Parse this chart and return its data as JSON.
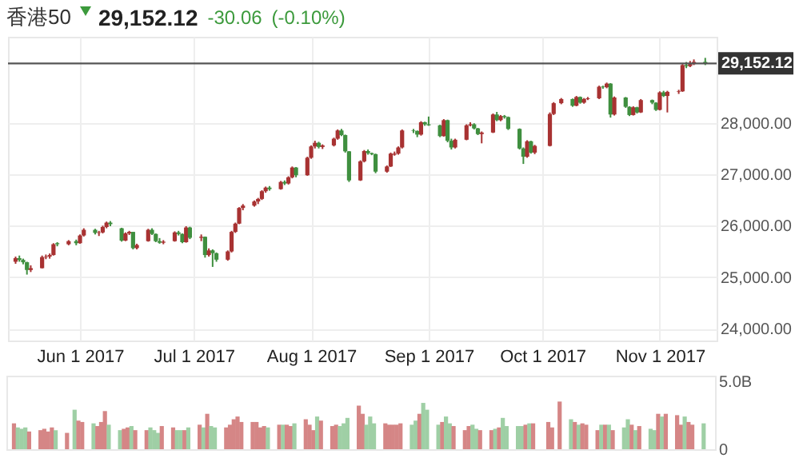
{
  "chart_data": [
    {
      "type": "candlestick",
      "title": "香港50",
      "annotations": [
        "29,152.12",
        "-30.06",
        "(-0.10%)"
      ],
      "x": [
        "2017-05-15",
        "2017-05-16",
        "2017-05-17",
        "2017-05-18",
        "2017-05-19",
        "2017-05-22",
        "2017-05-23",
        "2017-05-24",
        "2017-05-25",
        "2017-05-26",
        "2017-05-29",
        "2017-05-31",
        "2017-06-01",
        "2017-06-02",
        "2017-06-05",
        "2017-06-06",
        "2017-06-07",
        "2017-06-08",
        "2017-06-09",
        "2017-06-12",
        "2017-06-13",
        "2017-06-14",
        "2017-06-15",
        "2017-06-16",
        "2017-06-19",
        "2017-06-20",
        "2017-06-21",
        "2017-06-22",
        "2017-06-23",
        "2017-06-26",
        "2017-06-27",
        "2017-06-28",
        "2017-06-29",
        "2017-06-30",
        "2017-07-03",
        "2017-07-04",
        "2017-07-05",
        "2017-07-06",
        "2017-07-07",
        "2017-07-10",
        "2017-07-11",
        "2017-07-12",
        "2017-07-13",
        "2017-07-14",
        "2017-07-17",
        "2017-07-18",
        "2017-07-19",
        "2017-07-20",
        "2017-07-21",
        "2017-07-24",
        "2017-07-25",
        "2017-07-26",
        "2017-07-27",
        "2017-07-28",
        "2017-07-31",
        "2017-08-01",
        "2017-08-02",
        "2017-08-03",
        "2017-08-04",
        "2017-08-07",
        "2017-08-08",
        "2017-08-09",
        "2017-08-10",
        "2017-08-11",
        "2017-08-14",
        "2017-08-15",
        "2017-08-16",
        "2017-08-17",
        "2017-08-18",
        "2017-08-21",
        "2017-08-22",
        "2017-08-23",
        "2017-08-24",
        "2017-08-25",
        "2017-08-28",
        "2017-08-29",
        "2017-08-30",
        "2017-08-31",
        "2017-09-01",
        "2017-09-04",
        "2017-09-05",
        "2017-09-06",
        "2017-09-07",
        "2017-09-08",
        "2017-09-11",
        "2017-09-12",
        "2017-09-13",
        "2017-09-14",
        "2017-09-15",
        "2017-09-18",
        "2017-09-19",
        "2017-09-20",
        "2017-09-21",
        "2017-09-22",
        "2017-09-25",
        "2017-09-26",
        "2017-09-27",
        "2017-09-28",
        "2017-09-29",
        "2017-10-03",
        "2017-10-04",
        "2017-10-06",
        "2017-10-09",
        "2017-10-10",
        "2017-10-11",
        "2017-10-12",
        "2017-10-13",
        "2017-10-16",
        "2017-10-17",
        "2017-10-18",
        "2017-10-19",
        "2017-10-20",
        "2017-10-23",
        "2017-10-24",
        "2017-10-25",
        "2017-10-26",
        "2017-10-27",
        "2017-10-30",
        "2017-10-31",
        "2017-11-01",
        "2017-11-02",
        "2017-11-03",
        "2017-11-06",
        "2017-11-07",
        "2017-11-08",
        "2017-11-09",
        "2017-11-10",
        "2017-11-13"
      ],
      "ohlc": [
        [
          25300,
          25400,
          25260,
          25370
        ],
        [
          25370,
          25420,
          25300,
          25335
        ],
        [
          25335,
          25360,
          25250,
          25290
        ],
        [
          25290,
          25300,
          25050,
          25140
        ],
        [
          25140,
          25230,
          25100,
          25175
        ],
        [
          25175,
          25420,
          25170,
          25390
        ],
        [
          25390,
          25440,
          25350,
          25400
        ],
        [
          25400,
          25460,
          25360,
          25430
        ],
        [
          25430,
          25660,
          25420,
          25640
        ],
        [
          25660,
          25680,
          25600,
          25640
        ],
        [
          25640,
          25720,
          25620,
          25700
        ],
        [
          25700,
          25730,
          25620,
          25660
        ],
        [
          25660,
          25830,
          25650,
          25810
        ],
        [
          25810,
          25950,
          25790,
          25920
        ],
        [
          25920,
          25940,
          25830,
          25860
        ],
        [
          25860,
          25900,
          25800,
          25870
        ],
        [
          25870,
          26000,
          25850,
          25975
        ],
        [
          25975,
          26080,
          25950,
          26060
        ],
        [
          26060,
          26090,
          25990,
          26030
        ],
        [
          25950,
          25960,
          25690,
          25710
        ],
        [
          25710,
          25870,
          25700,
          25850
        ],
        [
          25850,
          25900,
          25820,
          25880
        ],
        [
          25880,
          25880,
          25540,
          25565
        ],
        [
          25565,
          25650,
          25540,
          25625
        ],
        [
          25700,
          25940,
          25690,
          25920
        ],
        [
          25920,
          25950,
          25820,
          25840
        ],
        [
          25840,
          25850,
          25680,
          25700
        ],
        [
          25700,
          25760,
          25650,
          25670
        ],
        [
          25670,
          25720,
          25640,
          25690
        ],
        [
          25700,
          25890,
          25690,
          25870
        ],
        [
          25870,
          25900,
          25810,
          25840
        ],
        [
          25840,
          25850,
          25660,
          25680
        ],
        [
          25680,
          25990,
          25670,
          25965
        ],
        [
          25965,
          25980,
          25740,
          25765
        ],
        [
          25765,
          25830,
          25700,
          25785
        ],
        [
          25785,
          25790,
          25380,
          25430
        ],
        [
          25430,
          25560,
          25400,
          25520
        ],
        [
          25520,
          25540,
          25200,
          25465
        ],
        [
          25465,
          25480,
          25300,
          25340
        ],
        [
          25340,
          25520,
          25320,
          25500
        ],
        [
          25500,
          25900,
          25480,
          25880
        ],
        [
          25880,
          26060,
          25860,
          26040
        ],
        [
          26040,
          26360,
          26030,
          26345
        ],
        [
          26345,
          26420,
          26300,
          26390
        ],
        [
          26390,
          26490,
          26370,
          26470
        ],
        [
          26470,
          26540,
          26420,
          26520
        ],
        [
          26520,
          26690,
          26500,
          26670
        ],
        [
          26670,
          26760,
          26640,
          26740
        ],
        [
          26740,
          26770,
          26680,
          26710
        ],
        [
          26710,
          26870,
          26700,
          26850
        ],
        [
          26850,
          26880,
          26790,
          26820
        ],
        [
          26820,
          26960,
          26800,
          26940
        ],
        [
          26940,
          27150,
          26920,
          27130
        ],
        [
          27130,
          27140,
          26940,
          26980
        ],
        [
          26980,
          27340,
          26970,
          27320
        ],
        [
          27320,
          27560,
          27300,
          27540
        ],
        [
          27540,
          27650,
          27500,
          27610
        ],
        [
          27610,
          27630,
          27500,
          27530
        ],
        [
          27530,
          27580,
          27490,
          27560
        ],
        [
          27560,
          27710,
          27540,
          27690
        ],
        [
          27690,
          27870,
          27670,
          27850
        ],
        [
          27850,
          27880,
          27740,
          27760
        ],
        [
          27760,
          27770,
          27420,
          27445
        ],
        [
          27445,
          27450,
          26850,
          26880
        ],
        [
          26880,
          27270,
          26870,
          27250
        ],
        [
          27250,
          27470,
          27230,
          27450
        ],
        [
          27450,
          27480,
          27380,
          27410
        ],
        [
          27410,
          27420,
          27370,
          27390
        ],
        [
          27390,
          27400,
          27020,
          27050
        ],
        [
          27050,
          27170,
          27030,
          27150
        ],
        [
          27150,
          27420,
          27140,
          27400
        ],
        [
          27380,
          27440,
          27360,
          27400
        ],
        [
          27400,
          27540,
          27380,
          27520
        ],
        [
          27520,
          27870,
          27500,
          27850
        ],
        [
          27850,
          27880,
          27800,
          27840
        ],
        [
          27840,
          27850,
          27720,
          27770
        ],
        [
          27770,
          28030,
          27750,
          28010
        ],
        [
          28010,
          28020,
          27940,
          27970
        ],
        [
          27970,
          28120,
          27940,
          27950
        ],
        [
          27950,
          27960,
          27720,
          27740
        ],
        [
          27740,
          28070,
          27730,
          28050
        ],
        [
          28050,
          28060,
          27620,
          27650
        ],
        [
          27650,
          27690,
          27480,
          27520
        ],
        [
          27520,
          27690,
          27500,
          27670
        ],
        [
          27670,
          27970,
          27660,
          27950
        ],
        [
          27950,
          28010,
          27930,
          27970
        ],
        [
          27970,
          27990,
          27870,
          27890
        ],
        [
          27890,
          27900,
          27760,
          27780
        ],
        [
          27780,
          27830,
          27600,
          27810
        ],
        [
          27810,
          28180,
          27800,
          28160
        ],
        [
          28160,
          28210,
          28030,
          28050
        ],
        [
          28050,
          28150,
          28030,
          28130
        ],
        [
          28130,
          28150,
          28080,
          28110
        ],
        [
          28110,
          28120,
          27860,
          27880
        ],
        [
          27880,
          27890,
          27480,
          27500
        ],
        [
          27500,
          27520,
          27200,
          27340
        ],
        [
          27340,
          27660,
          27320,
          27640
        ],
        [
          27640,
          27650,
          27400,
          27420
        ],
        [
          27420,
          27570,
          27390,
          27550
        ],
        [
          27550,
          28200,
          27540,
          28170
        ],
        [
          28170,
          28400,
          28150,
          28380
        ],
        [
          28380,
          28480,
          28360,
          28460
        ],
        [
          28460,
          28470,
          28310,
          28330
        ],
        [
          28330,
          28520,
          28320,
          28500
        ],
        [
          28500,
          28510,
          28370,
          28390
        ],
        [
          28390,
          28480,
          28370,
          28460
        ],
        [
          28460,
          28500,
          28440,
          28475
        ],
        [
          28475,
          28720,
          28460,
          28700
        ],
        [
          28700,
          28720,
          28660,
          28690
        ],
        [
          28690,
          28780,
          28670,
          28760
        ],
        [
          28760,
          28770,
          28100,
          28160
        ],
        [
          28160,
          28510,
          28140,
          28490
        ],
        [
          28490,
          28500,
          28290,
          28310
        ],
        [
          28310,
          28320,
          28130,
          28150
        ],
        [
          28150,
          28320,
          28140,
          28300
        ],
        [
          28300,
          28310,
          28180,
          28200
        ],
        [
          28200,
          28460,
          28190,
          28440
        ],
        [
          28440,
          28450,
          28360,
          28390
        ],
        [
          28390,
          28400,
          28230,
          28250
        ],
        [
          28250,
          28610,
          28240,
          28590
        ],
        [
          28590,
          28620,
          28500,
          28520
        ],
        [
          28520,
          28620,
          28200,
          28600
        ],
        [
          28600,
          28640,
          28560,
          28610
        ],
        [
          28610,
          29140,
          28600,
          29120
        ],
        [
          29120,
          29180,
          29060,
          29100
        ],
        [
          29100,
          29200,
          29080,
          29140
        ],
        [
          29140,
          29230,
          29120,
          29182.18
        ],
        [
          29182.18,
          29260,
          29120,
          29152.12
        ]
      ],
      "xlim": [
        "2017-05-13",
        "2017-11-16"
      ],
      "xticks": [
        {
          "value": "2017-06-01",
          "label": "Jun 1 2017"
        },
        {
          "value": "2017-07-01",
          "label": "Jul 1 2017"
        },
        {
          "value": "2017-08-01",
          "label": "Aug 1 2017"
        },
        {
          "value": "2017-09-01",
          "label": "Sep 1 2017"
        },
        {
          "value": "2017-10-01",
          "label": "Oct 1 2017"
        },
        {
          "value": "2017-11-01",
          "label": "Nov 1 2017"
        }
      ],
      "ylim": [
        23770,
        29670
      ],
      "yticks": [
        {
          "value": 24000,
          "label": "24,000.00"
        },
        {
          "value": 25000,
          "label": "25,000.00"
        },
        {
          "value": 26000,
          "label": "26,000.00"
        },
        {
          "value": 27000,
          "label": "27,000.00"
        },
        {
          "value": 28000,
          "label": "28,000.00"
        }
      ],
      "grid": true,
      "ref_lines": [
        {
          "axis": "y",
          "value": 29152.12,
          "label": "29,152.12",
          "color": "#555555"
        }
      ]
    },
    {
      "type": "bar",
      "x": [
        "2017-05-15",
        "2017-05-16",
        "2017-05-17",
        "2017-05-18",
        "2017-05-19",
        "2017-05-22",
        "2017-05-23",
        "2017-05-24",
        "2017-05-25",
        "2017-05-26",
        "2017-05-29",
        "2017-05-31",
        "2017-06-01",
        "2017-06-02",
        "2017-06-05",
        "2017-06-06",
        "2017-06-07",
        "2017-06-08",
        "2017-06-09",
        "2017-06-12",
        "2017-06-13",
        "2017-06-14",
        "2017-06-15",
        "2017-06-16",
        "2017-06-19",
        "2017-06-20",
        "2017-06-21",
        "2017-06-22",
        "2017-06-23",
        "2017-06-26",
        "2017-06-27",
        "2017-06-28",
        "2017-06-29",
        "2017-06-30",
        "2017-07-03",
        "2017-07-04",
        "2017-07-05",
        "2017-07-06",
        "2017-07-07",
        "2017-07-10",
        "2017-07-11",
        "2017-07-12",
        "2017-07-13",
        "2017-07-14",
        "2017-07-17",
        "2017-07-18",
        "2017-07-19",
        "2017-07-20",
        "2017-07-21",
        "2017-07-24",
        "2017-07-25",
        "2017-07-26",
        "2017-07-27",
        "2017-07-28",
        "2017-07-31",
        "2017-08-01",
        "2017-08-02",
        "2017-08-03",
        "2017-08-04",
        "2017-08-07",
        "2017-08-08",
        "2017-08-09",
        "2017-08-10",
        "2017-08-11",
        "2017-08-14",
        "2017-08-15",
        "2017-08-16",
        "2017-08-17",
        "2017-08-18",
        "2017-08-21",
        "2017-08-22",
        "2017-08-23",
        "2017-08-24",
        "2017-08-25",
        "2017-08-28",
        "2017-08-29",
        "2017-08-30",
        "2017-08-31",
        "2017-09-01",
        "2017-09-04",
        "2017-09-05",
        "2017-09-06",
        "2017-09-07",
        "2017-09-08",
        "2017-09-11",
        "2017-09-12",
        "2017-09-13",
        "2017-09-14",
        "2017-09-15",
        "2017-09-18",
        "2017-09-19",
        "2017-09-20",
        "2017-09-21",
        "2017-09-22",
        "2017-09-25",
        "2017-09-26",
        "2017-09-27",
        "2017-09-28",
        "2017-09-29",
        "2017-10-03",
        "2017-10-04",
        "2017-10-06",
        "2017-10-09",
        "2017-10-10",
        "2017-10-11",
        "2017-10-12",
        "2017-10-13",
        "2017-10-16",
        "2017-10-17",
        "2017-10-18",
        "2017-10-19",
        "2017-10-20",
        "2017-10-23",
        "2017-10-24",
        "2017-10-25",
        "2017-10-26",
        "2017-10-27",
        "2017-10-30",
        "2017-10-31",
        "2017-11-01",
        "2017-11-02",
        "2017-11-03",
        "2017-11-06",
        "2017-11-07",
        "2017-11-08",
        "2017-11-09",
        "2017-11-10",
        "2017-11-13"
      ],
      "values": [
        1.9,
        1.6,
        1.5,
        1.6,
        1.3,
        1.4,
        1.5,
        1.3,
        1.6,
        1.4,
        1.2,
        2.9,
        2.1,
        2.0,
        1.9,
        1.7,
        2.0,
        2.8,
        1.8,
        1.4,
        1.5,
        1.6,
        1.7,
        1.4,
        1.4,
        1.6,
        1.4,
        1.2,
        1.7,
        1.6,
        1.4,
        1.4,
        1.4,
        1.6,
        1.8,
        1.6,
        2.6,
        1.7,
        1.6,
        1.6,
        1.8,
        2.2,
        2.4,
        2.0,
        2.0,
        2.0,
        1.6,
        1.7,
        1.6,
        1.8,
        1.8,
        1.8,
        1.7,
        1.9,
        2.2,
        1.8,
        1.4,
        2.4,
        2.1,
        1.7,
        1.8,
        1.7,
        1.9,
        2.3,
        3.2,
        2.6,
        1.8,
        2.4,
        1.9,
        1.9,
        1.8,
        1.8,
        1.8,
        1.9,
        1.8,
        2.1,
        2.6,
        3.4,
        2.9,
        1.8,
        2.0,
        2.4,
        1.9,
        1.7,
        1.4,
        1.7,
        1.8,
        1.5,
        1.4,
        1.4,
        1.5,
        1.6,
        2.3,
        1.7,
        1.7,
        1.7,
        1.8,
        1.9,
        1.9,
        2.0,
        1.6,
        3.5,
        2.2,
        2.0,
        1.8,
        1.9,
        1.8,
        1.4,
        1.8,
        1.8,
        1.8,
        1.4,
        1.6,
        2.2,
        1.8,
        1.4,
        1.7,
        1.5,
        1.4,
        2.6,
        2.4,
        2.6,
        2.5,
        1.8,
        2.4,
        2.0,
        1.8,
        1.9
      ],
      "colors": [
        "#d58686",
        "#9fcfa5",
        "#9fcfa5",
        "#9fcfa5",
        "#d58686",
        "#d58686",
        "#d58686",
        "#d58686",
        "#d58686",
        "#9fcfa5",
        "#d58686",
        "#9fcfa5",
        "#d58686",
        "#d58686",
        "#9fcfa5",
        "#d58686",
        "#d58686",
        "#d58686",
        "#9fcfa5",
        "#9fcfa5",
        "#d58686",
        "#d58686",
        "#9fcfa5",
        "#d58686",
        "#d58686",
        "#9fcfa5",
        "#9fcfa5",
        "#9fcfa5",
        "#d58686",
        "#d58686",
        "#9fcfa5",
        "#9fcfa5",
        "#d58686",
        "#9fcfa5",
        "#d58686",
        "#9fcfa5",
        "#d58686",
        "#9fcfa5",
        "#9fcfa5",
        "#d58686",
        "#d58686",
        "#d58686",
        "#d58686",
        "#d58686",
        "#d58686",
        "#d58686",
        "#d58686",
        "#d58686",
        "#9fcfa5",
        "#d58686",
        "#9fcfa5",
        "#d58686",
        "#d58686",
        "#9fcfa5",
        "#d58686",
        "#d58686",
        "#d58686",
        "#9fcfa5",
        "#d58686",
        "#d58686",
        "#d58686",
        "#9fcfa5",
        "#9fcfa5",
        "#9fcfa5",
        "#d58686",
        "#d58686",
        "#9fcfa5",
        "#9fcfa5",
        "#9fcfa5",
        "#d58686",
        "#d58686",
        "#d58686",
        "#d58686",
        "#d58686",
        "#9fcfa5",
        "#9fcfa5",
        "#d58686",
        "#9fcfa5",
        "#9fcfa5",
        "#9fcfa5",
        "#d58686",
        "#9fcfa5",
        "#9fcfa5",
        "#d58686",
        "#d58686",
        "#d58686",
        "#9fcfa5",
        "#9fcfa5",
        "#d58686",
        "#d58686",
        "#9fcfa5",
        "#d58686",
        "#9fcfa5",
        "#9fcfa5",
        "#9fcfa5",
        "#9fcfa5",
        "#d58686",
        "#9fcfa5",
        "#d58686",
        "#d58686",
        "#d58686",
        "#d58686",
        "#9fcfa5",
        "#d58686",
        "#9fcfa5",
        "#d58686",
        "#d58686",
        "#d58686",
        "#9fcfa5",
        "#d58686",
        "#9fcfa5",
        "#d58686",
        "#9fcfa5",
        "#9fcfa5",
        "#d58686",
        "#9fcfa5",
        "#d58686",
        "#9fcfa5",
        "#9fcfa5",
        "#d58686",
        "#9fcfa5",
        "#d58686",
        "#d58686",
        "#d58686",
        "#9fcfa5",
        "#d58686",
        "#d58686",
        "#9fcfa5"
      ],
      "xlim": [
        "2017-05-13",
        "2017-11-16"
      ],
      "ylim": [
        0,
        5.4
      ],
      "yticks": [
        0,
        {
          "value": 5,
          "label": "5.0B"
        }
      ],
      "tick_labels": "y"
    }
  ]
}
